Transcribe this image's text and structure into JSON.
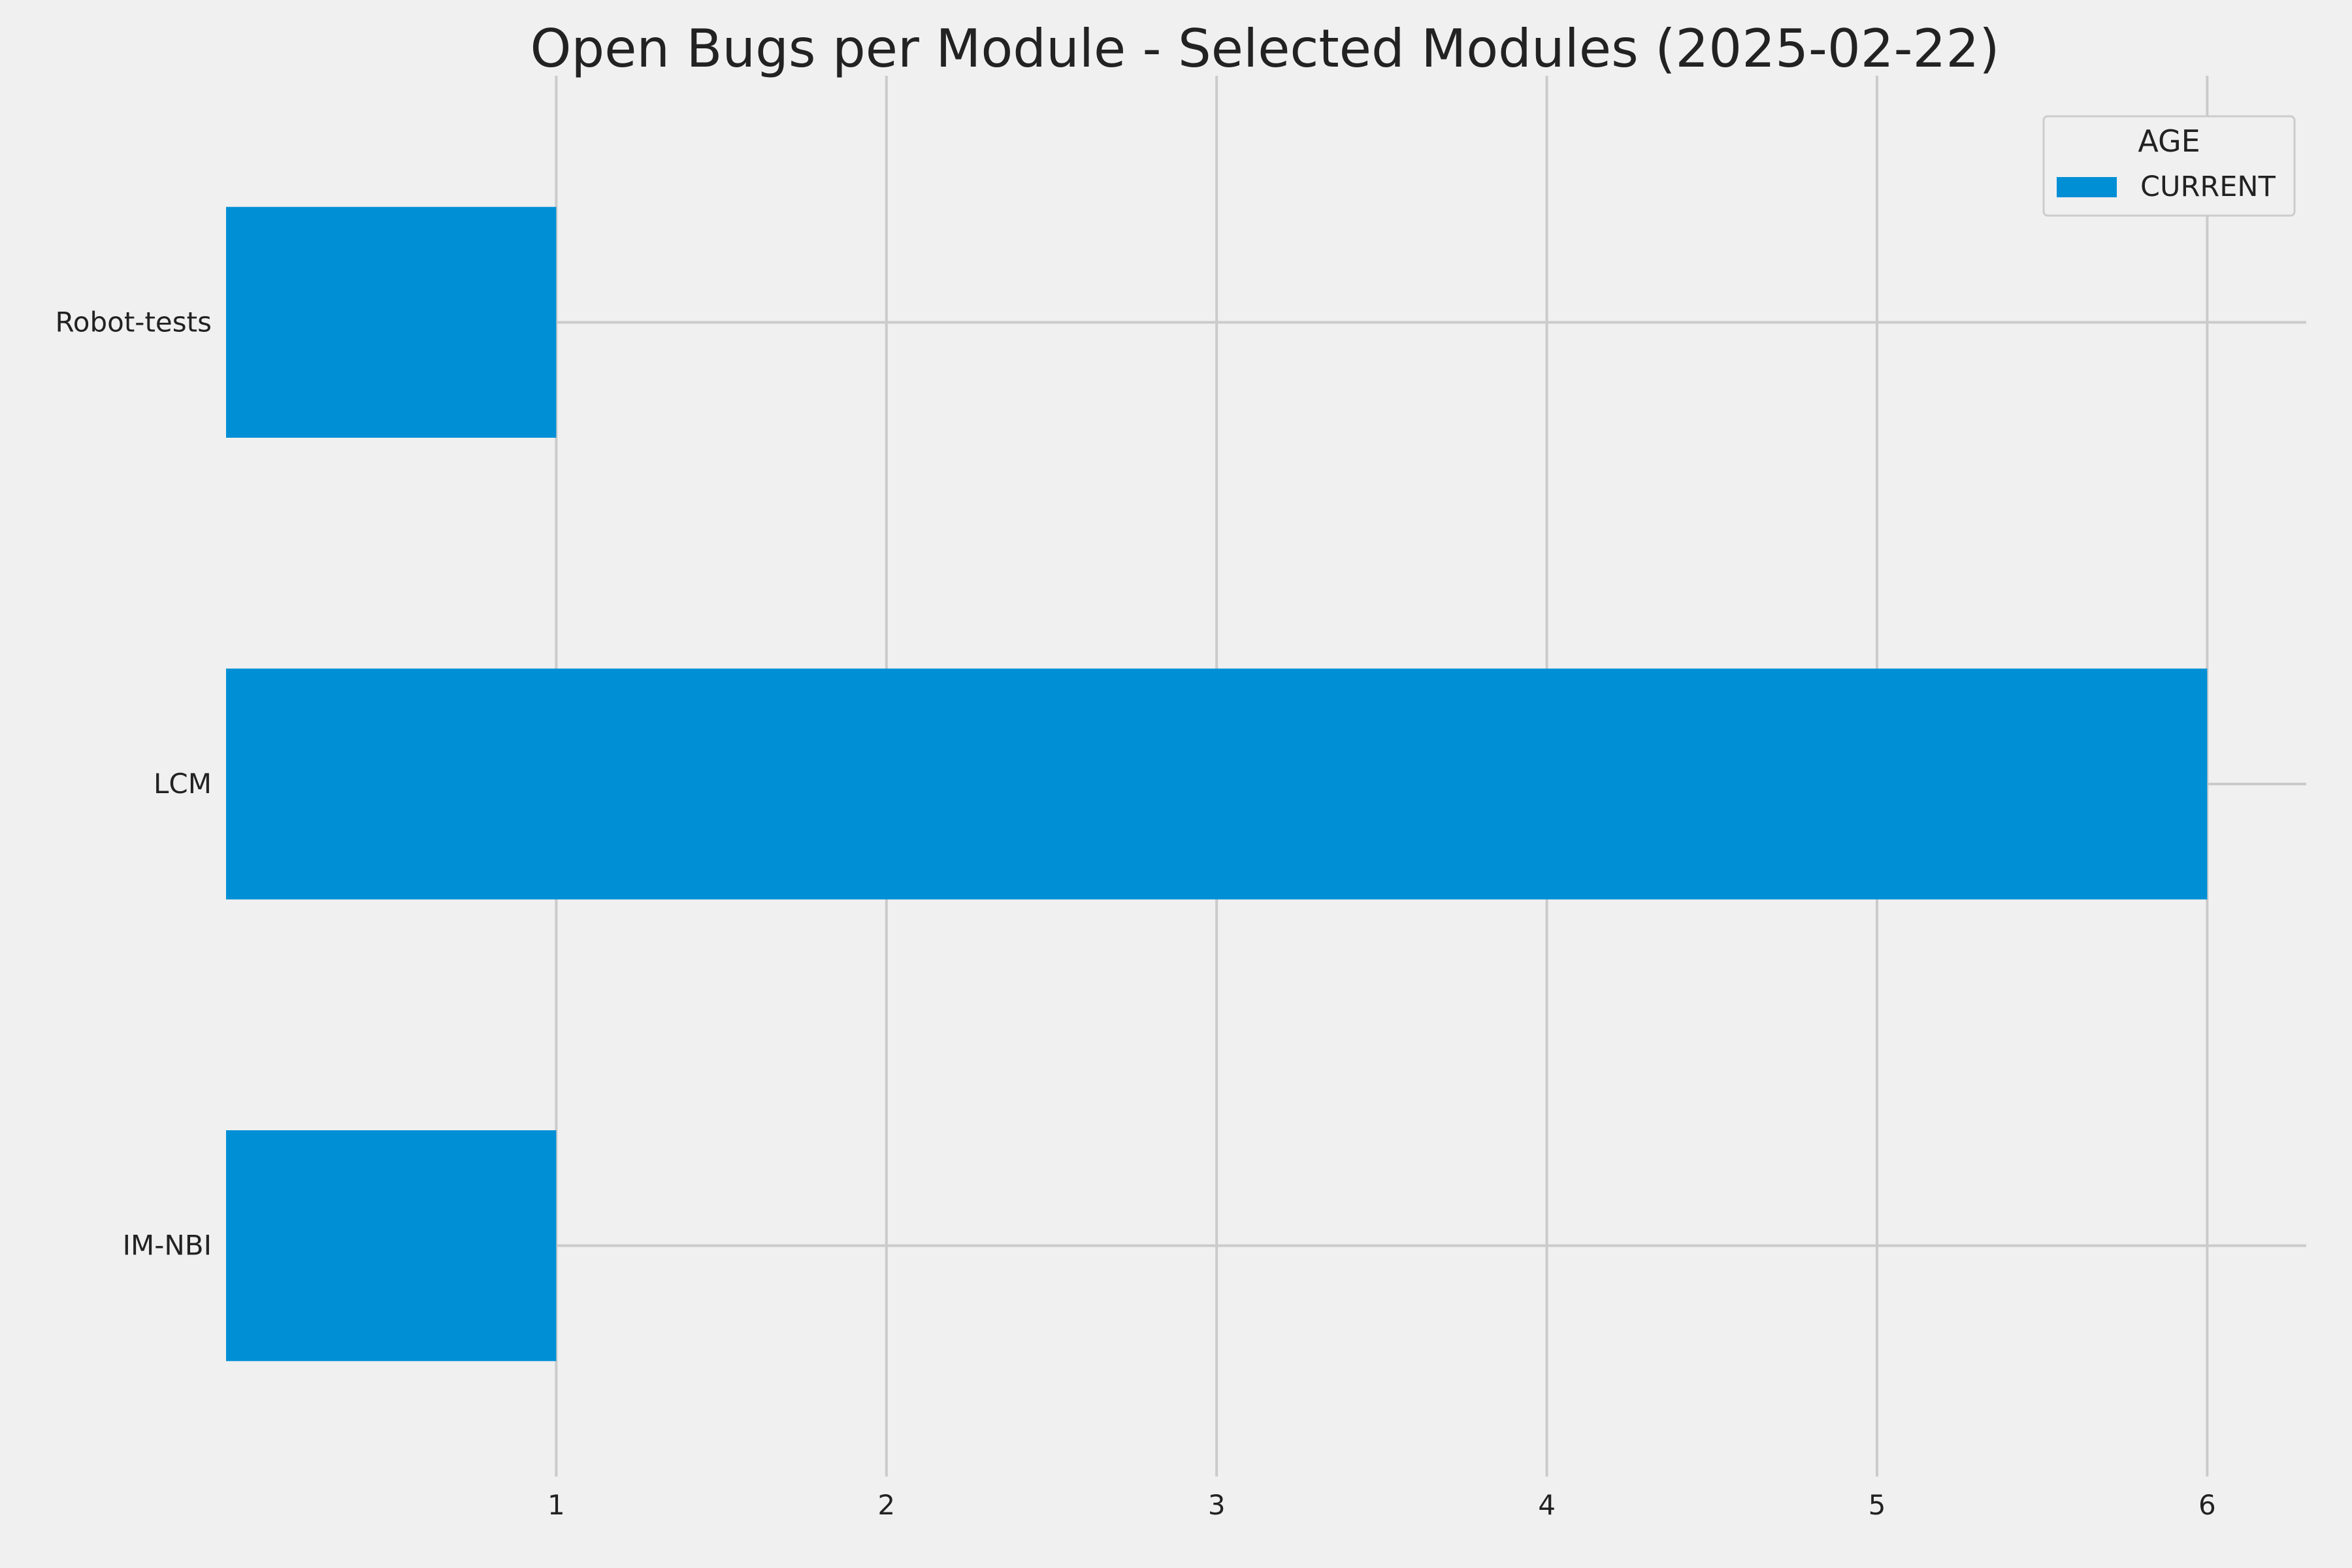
{
  "chart_data": {
    "type": "bar",
    "orientation": "horizontal",
    "title": "Open Bugs per Module - Selected Modules (2025-02-22)",
    "xlabel": "",
    "ylabel": "",
    "categories": [
      "IM-NBI",
      "LCM",
      "Robot-tests"
    ],
    "series": [
      {
        "name": "CURRENT",
        "values": [
          1,
          6,
          1
        ],
        "color": "#008fd5"
      }
    ],
    "xlim": [
      0,
      6.3
    ],
    "x_ticks": [
      "1",
      "2",
      "3",
      "4",
      "5",
      "6"
    ],
    "grid": true,
    "legend": {
      "title": "AGE",
      "placement": "top-right"
    },
    "background_color": "#f0f0f0",
    "grid_color": "#cbcbcb"
  }
}
